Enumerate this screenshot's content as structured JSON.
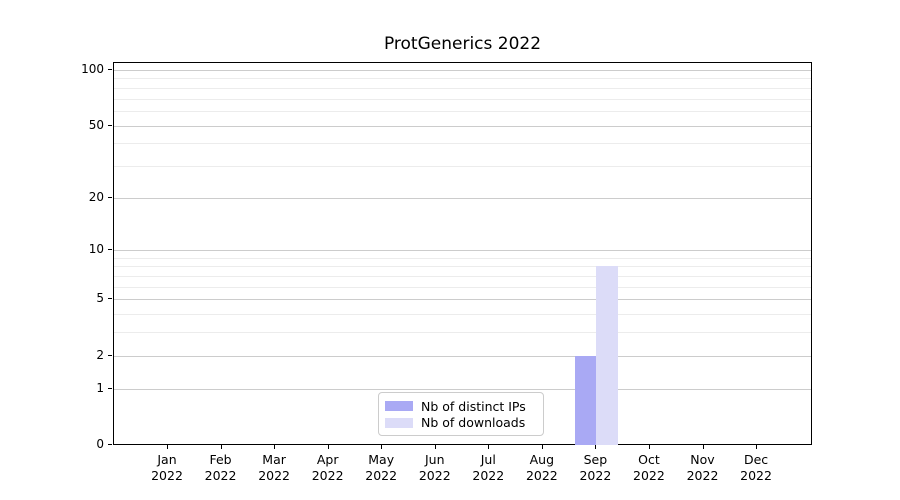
{
  "title": "ProtGenerics 2022",
  "chart_data": {
    "type": "bar",
    "title": "ProtGenerics 2022",
    "categories": [
      "Jan",
      "Feb",
      "Mar",
      "Apr",
      "May",
      "Jun",
      "Jul",
      "Aug",
      "Sep",
      "Oct",
      "Nov",
      "Dec"
    ],
    "category_year": "2022",
    "series": [
      {
        "name": "Nb of distinct IPs",
        "color": "#a9a9f4",
        "values": [
          0,
          0,
          0,
          0,
          0,
          0,
          0,
          0,
          2,
          0,
          0,
          0
        ]
      },
      {
        "name": "Nb of downloads",
        "color": "#dcdcf8",
        "values": [
          0,
          0,
          0,
          0,
          0,
          0,
          0,
          0,
          8,
          0,
          0,
          0
        ]
      }
    ],
    "xlabel": "",
    "ylabel": "",
    "y_axis": {
      "scale": "log1p",
      "tick_values": [
        0,
        1,
        2,
        5,
        10,
        20,
        50,
        100
      ],
      "tick_labels": [
        "0",
        "1",
        "2",
        "5",
        "10",
        "20",
        "50",
        "100"
      ],
      "minor_gridline_values": [
        3,
        4,
        6,
        7,
        8,
        9,
        30,
        40,
        60,
        70,
        80,
        90
      ],
      "max": 100
    },
    "grid": true,
    "legend_position": "lower center"
  },
  "colors": {
    "background": "#ffffff",
    "axis": "#000000",
    "major_grid": "#cccccc",
    "minor_grid": "#ececec",
    "legend_border": "#cccccc"
  }
}
